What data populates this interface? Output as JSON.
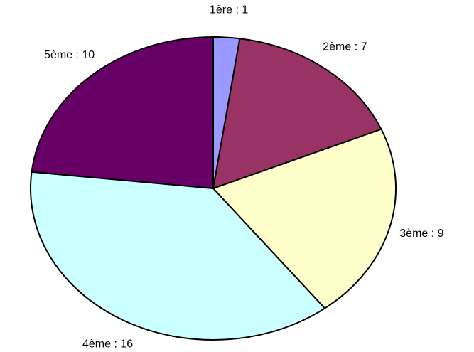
{
  "chart_data": {
    "type": "pie",
    "values": [
      1,
      7,
      9,
      16,
      10
    ],
    "value_labels": [
      "1ère : 1",
      "2ème : 7",
      "3ème : 9",
      "4ème : 16",
      "5ème : 10"
    ],
    "colors": [
      "#9999ff",
      "#993366",
      "#ffffcc",
      "#ccffff",
      "#660066"
    ]
  }
}
